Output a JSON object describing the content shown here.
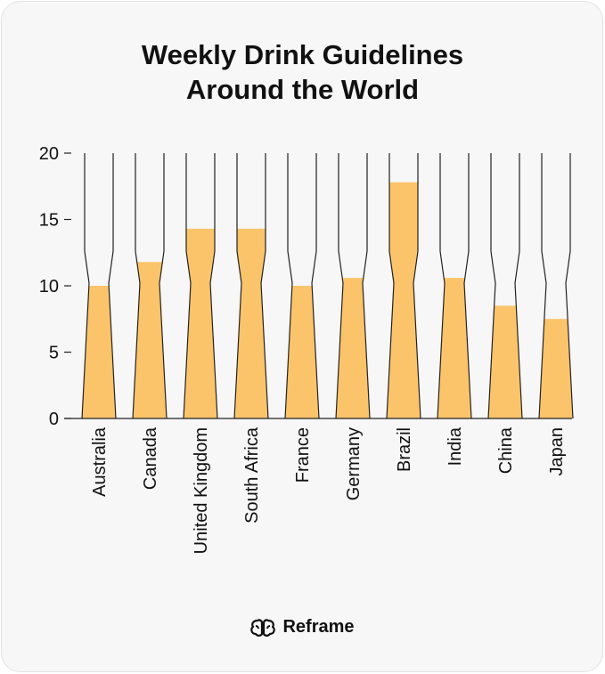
{
  "title_line1": "Weekly Drink Guidelines",
  "title_line2": "Around the World",
  "brand": {
    "name": "Reframe",
    "icon": "brain-icon"
  },
  "chart_data": {
    "type": "bar",
    "title": "Weekly Drink Guidelines Around the World",
    "xlabel": "",
    "ylabel": "",
    "categories": [
      "Australia",
      "Canada",
      "United Kingdom",
      "South Africa",
      "France",
      "Germany",
      "Brazil",
      "India",
      "China",
      "Japan"
    ],
    "values": [
      10,
      11.8,
      14.3,
      14.3,
      10,
      10.6,
      17.8,
      10.6,
      8.5,
      7.5
    ],
    "ylim": [
      0,
      20
    ],
    "yticks": [
      0,
      5,
      10,
      15,
      20
    ],
    "bar_color": "#fcc46a",
    "grid": false
  }
}
